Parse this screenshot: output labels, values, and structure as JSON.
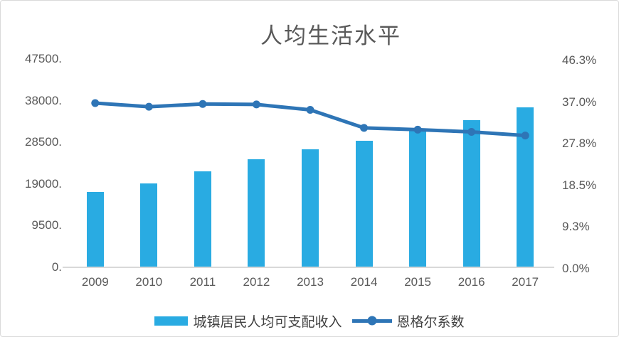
{
  "chart_data": {
    "type": "combo-bar-line",
    "title": "人均生活水平",
    "categories": [
      "2009",
      "2010",
      "2011",
      "2012",
      "2013",
      "2014",
      "2015",
      "2016",
      "2017"
    ],
    "series": [
      {
        "name": "城镇居民人均可支配收入",
        "type": "bar",
        "axis": "left",
        "color": "#29ABE2",
        "values": [
          17175,
          19109,
          21810,
          24565,
          26955,
          28844,
          31195,
          33616,
          36396
        ]
      },
      {
        "name": "恩格尔系数",
        "type": "line",
        "axis": "right",
        "unit": "%",
        "color": "#2E75B6",
        "values": [
          36.5,
          35.7,
          36.3,
          36.2,
          35.0,
          31.0,
          30.6,
          30.1,
          29.3
        ]
      }
    ],
    "left_axis": {
      "min": 0,
      "max": 47500,
      "tick_labels": [
        "0.",
        "9500.",
        "19000.",
        "28500.",
        "38000.",
        "47500."
      ]
    },
    "right_axis": {
      "min": 0,
      "max": 46.3,
      "tick_labels": [
        "0.0%",
        "9.3%",
        "18.5%",
        "27.8%",
        "37.0%",
        "46.3%"
      ]
    },
    "grid": false,
    "legend_position": "bottom",
    "colors": {
      "text": "#595959",
      "axis_line": "#D9D9D9",
      "background": "#FFFFFF"
    }
  }
}
